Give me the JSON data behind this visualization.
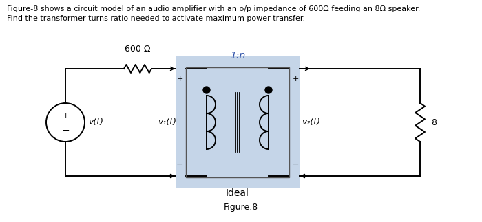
{
  "title_line1": "Figure-8 shows a circuit model of an audio amplifier with an o/p impedance of 600Ω feeding an 8Ω speaker.",
  "title_line2": "Find the transformer turns ratio needed to activate maximum power transfer.",
  "figure_caption": "Figure.8",
  "bg_color": "#ffffff",
  "transformer_bg": "#c5d5e8",
  "turns_ratio_color": "#3355aa",
  "text_color": "#000000",
  "resistor_600_label": "600 Ω",
  "resistor_8_label": "8",
  "turns_ratio_label": "1:n",
  "ideal_label": "Ideal",
  "v_source_label": "v(t)",
  "v1_label": "v₁(t)",
  "v2_label": "v₂(t)"
}
